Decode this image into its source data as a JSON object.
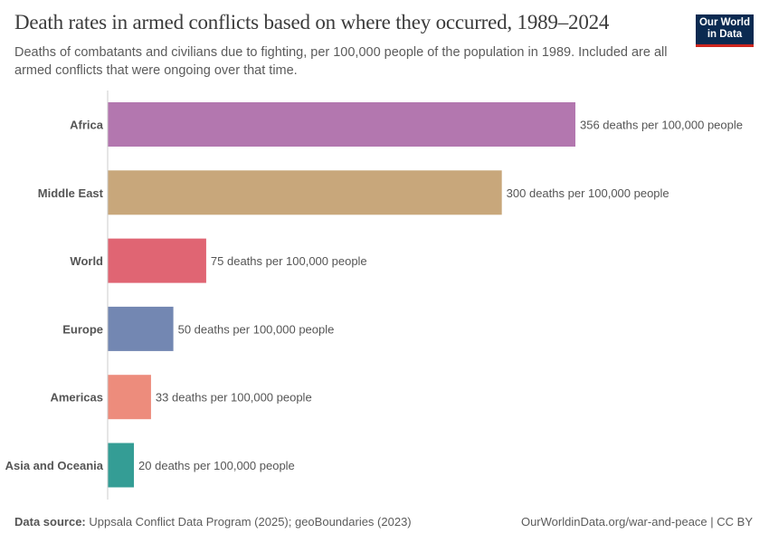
{
  "header": {
    "title": "Death rates in armed conflicts based on where they occurred, 1989–2024",
    "subtitle": "Deaths of combatants and civilians due to fighting, per 100,000 people of the population in 1989. Included are all armed conflicts that were ongoing over that time.",
    "logo": "Our World in Data"
  },
  "footer": {
    "source_label": "Data source:",
    "source": "Uppsala Conflict Data Program (2025); geoBoundaries (2023)",
    "credit": "OurWorldinData.org/war-and-peace | CC BY"
  },
  "chart_data": {
    "type": "bar",
    "orientation": "horizontal",
    "title": "Death rates in armed conflicts based on where they occurred, 1989–2024",
    "categories": [
      "Africa",
      "Middle East",
      "World",
      "Europe",
      "Americas",
      "Asia and Oceania"
    ],
    "values": [
      356,
      300,
      75,
      50,
      33,
      20
    ],
    "value_labels": [
      "356 deaths per 100,000 people",
      "300 deaths per 100,000 people",
      "75 deaths per 100,000 people",
      "50 deaths per 100,000 people",
      "33 deaths per 100,000 people",
      "20 deaths per 100,000 people"
    ],
    "colors": [
      "#b377af",
      "#c8a77b",
      "#e06573",
      "#7387b2",
      "#ed8c7c",
      "#349d95"
    ],
    "xlim": [
      0,
      356
    ],
    "grid": false
  }
}
